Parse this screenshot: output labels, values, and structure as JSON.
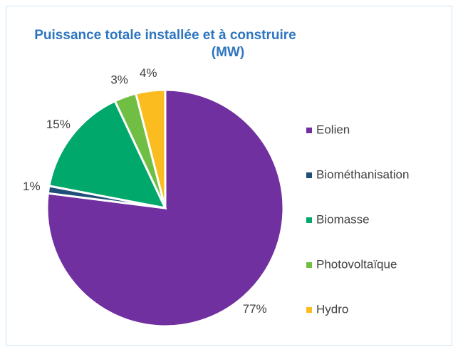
{
  "chart_data": {
    "type": "pie",
    "title": [
      "Puissance totale installée et à construire",
      "(MW)"
    ],
    "categories": [
      "Eolien",
      "Biométhanisation",
      "Biomasse",
      "Photovoltaïque",
      "Hydro"
    ],
    "values": [
      77,
      1,
      15,
      3,
      4
    ],
    "value_labels": [
      "77%",
      "1%",
      "15%",
      "3%",
      "4%"
    ],
    "colors": [
      "#7030a0",
      "#1f4e79",
      "#00a86b",
      "#70bf44",
      "#fbbc1f"
    ],
    "legend": "right"
  }
}
